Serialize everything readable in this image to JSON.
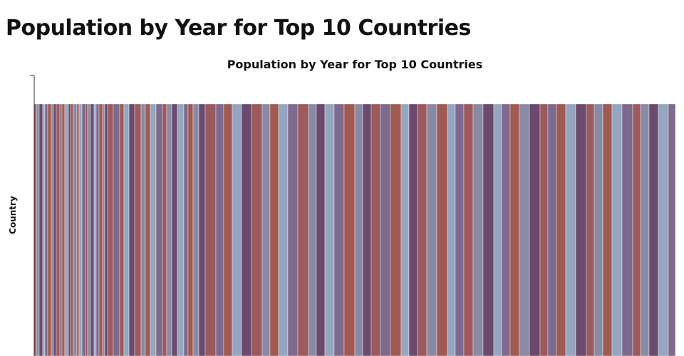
{
  "page": {
    "title": "Population by Year for Top 10 Countries"
  },
  "chart_data": {
    "type": "bar",
    "title": "Population by Year for Top 10 Countries",
    "xlabel": "",
    "ylabel": "Country",
    "orientation": "vertical",
    "stacked": true,
    "categories": [],
    "palette": [
      "#9b5a5e",
      "#96a6c1",
      "#8a8aa6",
      "#7d6a8e",
      "#6b4a6e",
      "#a05a52"
    ],
    "series": []
  }
}
